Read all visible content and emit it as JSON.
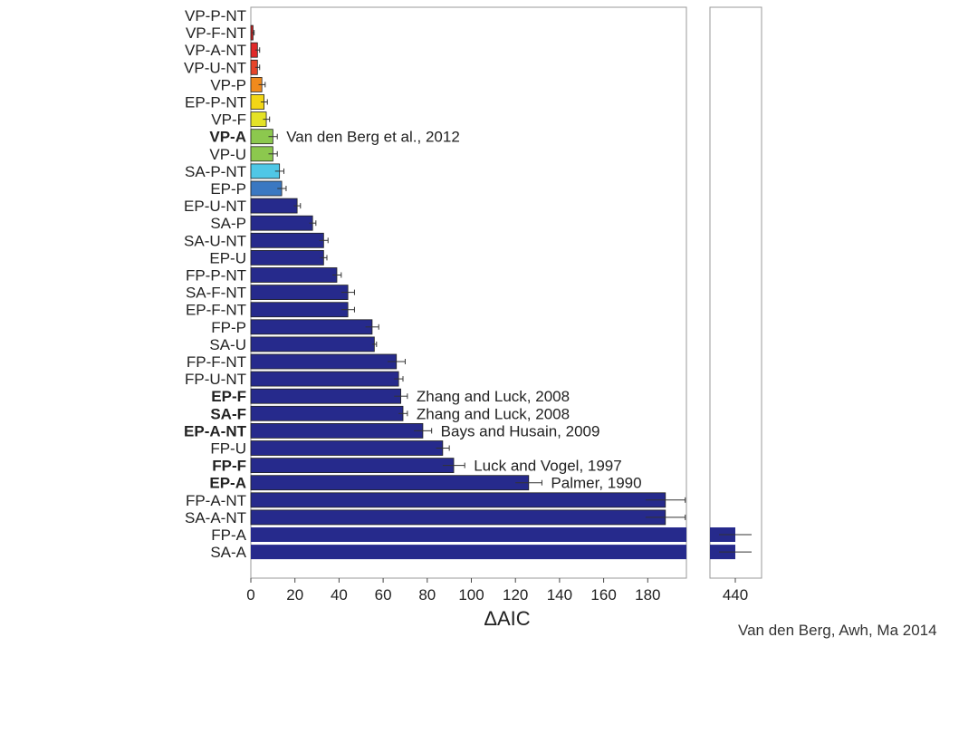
{
  "chart_data": {
    "type": "bar",
    "orientation": "horizontal",
    "xlabel": "ΔAIC",
    "xlim": [
      0,
      200
    ],
    "xticks": [
      "0",
      "20",
      "40",
      "60",
      "80",
      "100",
      "120",
      "140",
      "160",
      "180"
    ],
    "break_tick": "440",
    "categories": [
      {
        "label": "VP-P-NT",
        "value": 0,
        "err": 0,
        "color": "#ffffff",
        "bold": false,
        "note": ""
      },
      {
        "label": "VP-F-NT",
        "value": 1,
        "err": 0.5,
        "color": "#c71f1f",
        "bold": false,
        "note": ""
      },
      {
        "label": "VP-A-NT",
        "value": 3,
        "err": 1,
        "color": "#e02a2a",
        "bold": false,
        "note": ""
      },
      {
        "label": "VP-U-NT",
        "value": 3,
        "err": 1,
        "color": "#e6452a",
        "bold": false,
        "note": ""
      },
      {
        "label": "VP-P",
        "value": 5,
        "err": 1.5,
        "color": "#f08a1c",
        "bold": false,
        "note": ""
      },
      {
        "label": "EP-P-NT",
        "value": 6,
        "err": 1.5,
        "color": "#f2d616",
        "bold": false,
        "note": ""
      },
      {
        "label": "VP-F",
        "value": 7,
        "err": 1.5,
        "color": "#e4e227",
        "bold": false,
        "note": ""
      },
      {
        "label": "VP-A",
        "value": 10,
        "err": 2,
        "color": "#8cc84e",
        "bold": true,
        "note": "Van den Berg et al., 2012"
      },
      {
        "label": "VP-U",
        "value": 10,
        "err": 2,
        "color": "#8cc84e",
        "bold": false,
        "note": ""
      },
      {
        "label": "SA-P-NT",
        "value": 13,
        "err": 2,
        "color": "#4fc7e6",
        "bold": false,
        "note": ""
      },
      {
        "label": "EP-P",
        "value": 14,
        "err": 2,
        "color": "#3a78c2",
        "bold": false,
        "note": ""
      },
      {
        "label": "EP-U-NT",
        "value": 21,
        "err": 1.5,
        "color": "#262a8c",
        "bold": false,
        "note": ""
      },
      {
        "label": "SA-P",
        "value": 28,
        "err": 1.5,
        "color": "#262a8c",
        "bold": false,
        "note": ""
      },
      {
        "label": "SA-U-NT",
        "value": 33,
        "err": 2,
        "color": "#262a8c",
        "bold": false,
        "note": ""
      },
      {
        "label": "EP-U",
        "value": 33,
        "err": 1.5,
        "color": "#262a8c",
        "bold": false,
        "note": ""
      },
      {
        "label": "FP-P-NT",
        "value": 39,
        "err": 2,
        "color": "#262a8c",
        "bold": false,
        "note": ""
      },
      {
        "label": "SA-F-NT",
        "value": 44,
        "err": 3,
        "color": "#262a8c",
        "bold": false,
        "note": ""
      },
      {
        "label": "EP-F-NT",
        "value": 44,
        "err": 3,
        "color": "#262a8c",
        "bold": false,
        "note": ""
      },
      {
        "label": "FP-P",
        "value": 55,
        "err": 3,
        "color": "#262a8c",
        "bold": false,
        "note": ""
      },
      {
        "label": "SA-U",
        "value": 56,
        "err": 1,
        "color": "#262a8c",
        "bold": false,
        "note": ""
      },
      {
        "label": "FP-F-NT",
        "value": 66,
        "err": 4,
        "color": "#262a8c",
        "bold": false,
        "note": ""
      },
      {
        "label": "FP-U-NT",
        "value": 67,
        "err": 2,
        "color": "#262a8c",
        "bold": false,
        "note": ""
      },
      {
        "label": "EP-F",
        "value": 68,
        "err": 3,
        "color": "#262a8c",
        "bold": true,
        "note": "Zhang and Luck, 2008"
      },
      {
        "label": "SA-F",
        "value": 69,
        "err": 2,
        "color": "#262a8c",
        "bold": true,
        "note": "Zhang and Luck, 2008"
      },
      {
        "label": "EP-A-NT",
        "value": 78,
        "err": 4,
        "color": "#262a8c",
        "bold": true,
        "note": "Bays and Husain, 2009"
      },
      {
        "label": "FP-U",
        "value": 87,
        "err": 3,
        "color": "#262a8c",
        "bold": false,
        "note": ""
      },
      {
        "label": "FP-F",
        "value": 92,
        "err": 5,
        "color": "#262a8c",
        "bold": true,
        "note": "Luck and Vogel, 1997"
      },
      {
        "label": "EP-A",
        "value": 126,
        "err": 6,
        "color": "#262a8c",
        "bold": true,
        "note": "Palmer, 1990"
      },
      {
        "label": "FP-A-NT",
        "value": 188,
        "err": 9,
        "color": "#262a8c",
        "bold": false,
        "note": ""
      },
      {
        "label": "SA-A-NT",
        "value": 188,
        "err": 9,
        "color": "#262a8c",
        "bold": false,
        "note": ""
      },
      {
        "label": "FP-A",
        "value": 440,
        "err": 8,
        "color": "#262a8c",
        "bold": false,
        "note": ""
      },
      {
        "label": "SA-A",
        "value": 440,
        "err": 8,
        "color": "#262a8c",
        "bold": false,
        "note": ""
      }
    ]
  },
  "credit": "Van den Berg, Awh, Ma 2014"
}
